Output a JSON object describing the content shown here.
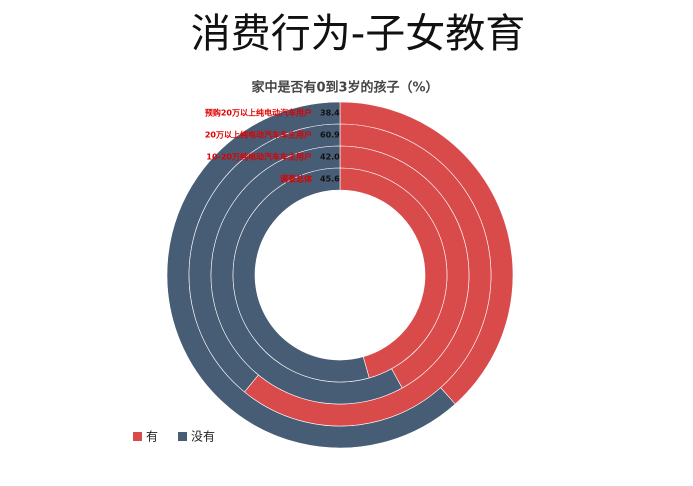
{
  "title": "消费行为-子女教育",
  "chart_data": {
    "type": "ring",
    "title": "家中是否有0到3岁的孩子（%）",
    "categories": [
      "预购20万以上纯电动汽车用户",
      "20万以上纯电动汽车车主用户",
      "10-20万纯电动汽车车主用户",
      "调查总体"
    ],
    "series": [
      {
        "name": "有",
        "color": "#d94b4b",
        "values": [
          38.4,
          60.9,
          42.0,
          45.6
        ],
        "value_labels": [
          "38.4",
          "60.9",
          "42.0",
          "45.6"
        ]
      },
      {
        "name": "没有",
        "color": "#475c75",
        "values": [
          61.6,
          39.1,
          58.0,
          54.4
        ]
      }
    ],
    "legend": "bottom-left"
  }
}
